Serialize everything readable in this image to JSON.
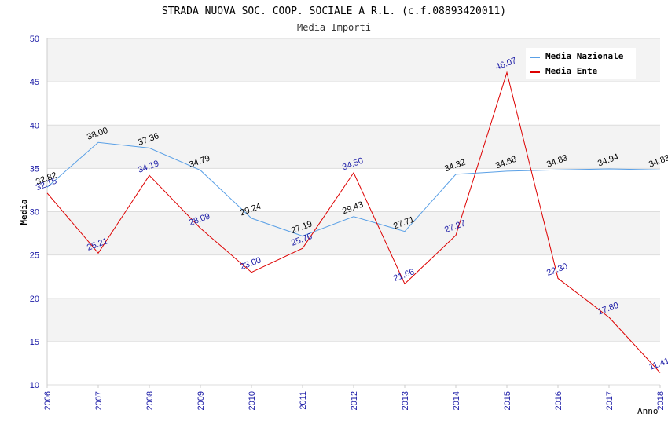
{
  "chart_data": {
    "type": "line",
    "title": "STRADA NUOVA SOC. COOP. SOCIALE A R.L. (c.f.08893420011)",
    "subtitle": "Media Importi",
    "xlabel": "Anno",
    "ylabel": "Media",
    "ylim": [
      10,
      50
    ],
    "yticks": [
      10,
      15,
      20,
      25,
      30,
      35,
      40,
      45,
      50
    ],
    "categories": [
      "2006",
      "2007",
      "2008",
      "2009",
      "2010",
      "2011",
      "2012",
      "2013",
      "2014",
      "2015",
      "2016",
      "2017",
      "2018"
    ],
    "series": [
      {
        "name": "Media Nazionale",
        "color": "#5aa0e6",
        "values": [
          32.82,
          38.0,
          37.36,
          34.79,
          29.24,
          27.19,
          29.43,
          27.71,
          34.32,
          34.68,
          34.83,
          34.94,
          34.83
        ],
        "labels": [
          "32.82",
          "38.00",
          "37.36",
          "34.79",
          "29.24",
          "27.19",
          "29.43",
          "27.71",
          "34.32",
          "34.68",
          "34.83",
          "34.94",
          "34.83"
        ]
      },
      {
        "name": "Media Ente",
        "color": "#dd0000",
        "values": [
          32.15,
          25.21,
          34.19,
          28.09,
          23.0,
          25.76,
          34.5,
          21.66,
          27.27,
          46.07,
          22.3,
          17.8,
          11.41
        ],
        "labels": [
          "32.15",
          "25.21",
          "34.19",
          "28.09",
          "23.00",
          "25.76",
          "34.50",
          "21.66",
          "27.27",
          "46.07",
          "22.30",
          "17.80",
          "11.41"
        ]
      }
    ],
    "legend_position": "top-right",
    "grid": true
  }
}
